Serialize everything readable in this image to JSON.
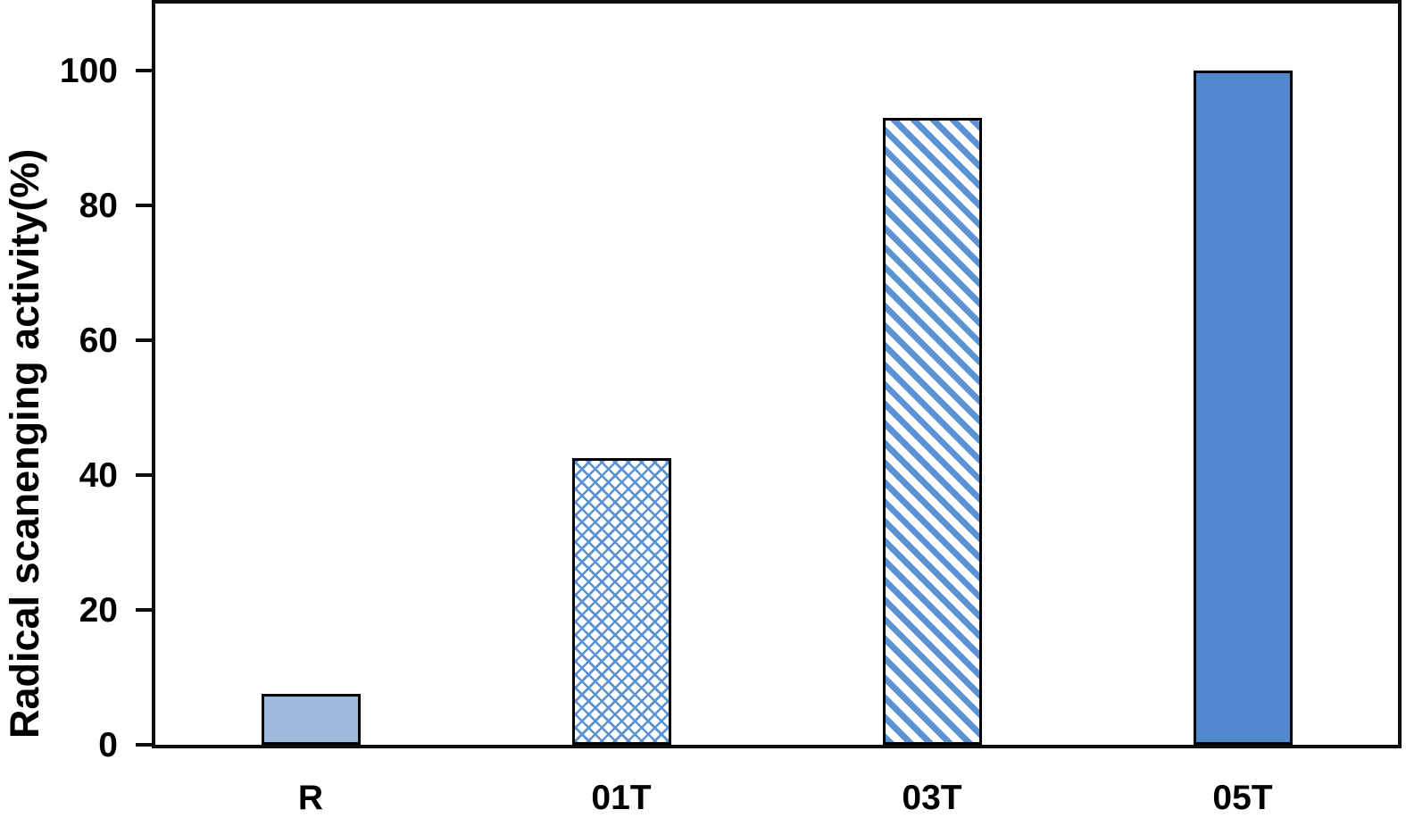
{
  "chart_data": {
    "type": "bar",
    "title": "",
    "xlabel": "",
    "ylabel": "Radical scanenging activity(%)",
    "categories": [
      "R",
      "01T",
      "03T",
      "05T"
    ],
    "values": [
      7.5,
      42.5,
      93,
      100
    ],
    "yticks": [
      0,
      20,
      40,
      60,
      80,
      100
    ],
    "ylim": [
      0,
      110
    ],
    "grid": false,
    "legend_position": "none",
    "bar_styles": [
      {
        "fill": "solid",
        "color": "#9CBADC"
      },
      {
        "fill": "diagonal-crosshatch",
        "color": "#5B92D4"
      },
      {
        "fill": "downward-diagonal-stripe",
        "color": "#5B92D4"
      },
      {
        "fill": "solid",
        "color": "#5289CE"
      }
    ],
    "bar_border_color": "#000000",
    "axis_color": "#0D0D0D",
    "text_color": "#000000"
  }
}
